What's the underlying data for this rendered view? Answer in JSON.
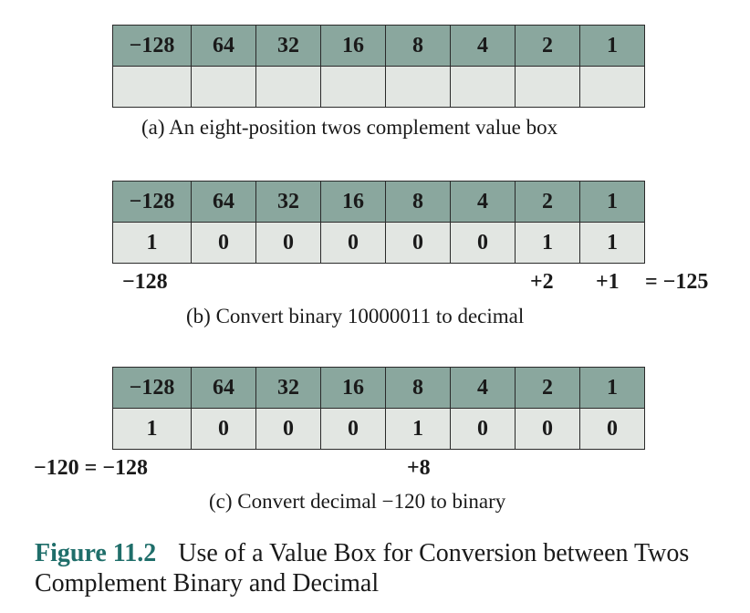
{
  "weights": [
    "−128",
    "64",
    "32",
    "16",
    "8",
    "4",
    "2",
    "1"
  ],
  "panel_a": {
    "bits": [
      "",
      "",
      "",
      "",
      "",
      "",
      "",
      ""
    ],
    "caption": "(a) An eight-position twos complement value box"
  },
  "panel_b": {
    "bits": [
      "1",
      "0",
      "0",
      "0",
      "0",
      "0",
      "1",
      "1"
    ],
    "term_msb": "−128",
    "term_2": "+2",
    "term_1": "+1",
    "result": "= −125",
    "caption": "(b) Convert binary 10000011 to decimal"
  },
  "panel_c": {
    "bits": [
      "1",
      "0",
      "0",
      "0",
      "1",
      "0",
      "0",
      "0"
    ],
    "term_msb": "−120 = −128",
    "term_8": "+8",
    "caption": "(c) Convert decimal −120 to binary"
  },
  "figure": {
    "number": "Figure 11.2",
    "title": "Use of a Value Box for Conversion between Twos Complement Binary and Decimal"
  }
}
